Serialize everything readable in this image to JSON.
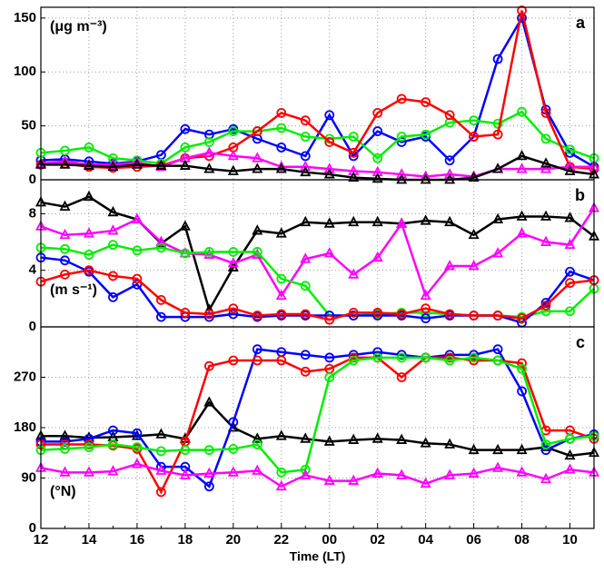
{
  "chart_data": [
    {
      "type": "line",
      "panel": "a",
      "ylabel": "(μg m⁻³)",
      "ylim": [
        0,
        160
      ],
      "yticks": [
        0,
        50,
        100,
        150
      ],
      "grid": true,
      "series": [
        {
          "color": "#0000ff",
          "marker": "circle",
          "values": [
            18,
            19,
            17,
            15,
            17,
            23,
            47,
            42,
            47,
            38,
            30,
            22,
            60,
            22,
            45,
            35,
            40,
            18,
            40,
            112,
            150,
            65,
            25,
            12
          ]
        },
        {
          "color": "#00ee00",
          "marker": "circle",
          "values": [
            25,
            27,
            30,
            20,
            18,
            15,
            30,
            35,
            45,
            45,
            48,
            40,
            38,
            40,
            20,
            40,
            42,
            53,
            55,
            52,
            63,
            38,
            28,
            20
          ]
        },
        {
          "color": "#ff0000",
          "marker": "circle",
          "values": [
            14,
            15,
            12,
            11,
            12,
            13,
            20,
            22,
            30,
            45,
            62,
            55,
            35,
            25,
            62,
            75,
            72,
            60,
            40,
            42,
            157,
            62,
            12,
            10
          ]
        },
        {
          "color": "#ff00ff",
          "marker": "triangle",
          "values": [
            15,
            17,
            14,
            14,
            16,
            12,
            20,
            25,
            22,
            20,
            12,
            12,
            10,
            8,
            7,
            5,
            3,
            5,
            3,
            10,
            10,
            10,
            12,
            12
          ]
        },
        {
          "color": "#000000",
          "marker": "triangle",
          "values": [
            14,
            14,
            13,
            12,
            14,
            13,
            13,
            10,
            8,
            10,
            10,
            7,
            5,
            2,
            1,
            0,
            0,
            0,
            2,
            10,
            22,
            15,
            8,
            5
          ]
        }
      ]
    },
    {
      "type": "line",
      "panel": "b",
      "ylabel": "(m s⁻¹)",
      "ylim": [
        0,
        10.4
      ],
      "yticks": [
        0,
        4,
        8
      ],
      "grid": true,
      "series": [
        {
          "color": "#000000",
          "marker": "triangle",
          "values": [
            8.8,
            8.5,
            9.2,
            8.1,
            7.6,
            5.9,
            7.1,
            1.2,
            4.2,
            6.8,
            6.6,
            7.4,
            7.3,
            7.4,
            7.4,
            7.3,
            7.5,
            7.4,
            6.5,
            7.6,
            7.8,
            7.8,
            7.7,
            6.4
          ]
        },
        {
          "color": "#ff00ff",
          "marker": "triangle",
          "values": [
            7.1,
            6.5,
            6.6,
            6.8,
            7.6,
            6.0,
            5.2,
            5.1,
            4.5,
            5.1,
            2.2,
            4.8,
            5.2,
            3.7,
            4.9,
            7.3,
            2.2,
            4.3,
            4.3,
            5.2,
            6.6,
            6.0,
            5.8,
            8.4
          ]
        },
        {
          "color": "#00ee00",
          "marker": "circle",
          "values": [
            5.6,
            5.5,
            5.1,
            5.8,
            5.4,
            5.6,
            5.2,
            5.3,
            5.3,
            5.3,
            3.4,
            2.9,
            0.8,
            0.8,
            0.9,
            1.0,
            1.0,
            0.9,
            0.8,
            0.8,
            0.7,
            1.1,
            1.1,
            2.7
          ]
        },
        {
          "color": "#0000ff",
          "marker": "circle",
          "values": [
            4.9,
            4.7,
            3.9,
            2.1,
            3.0,
            0.7,
            0.7,
            0.7,
            0.9,
            0.7,
            0.8,
            0.8,
            0.8,
            0.8,
            0.8,
            0.8,
            0.6,
            0.8,
            0.8,
            0.8,
            0.3,
            1.7,
            3.9,
            3.3
          ]
        },
        {
          "color": "#ff0000",
          "marker": "circle",
          "values": [
            3.2,
            3.7,
            4.0,
            3.6,
            3.4,
            1.9,
            1.0,
            0.9,
            1.3,
            0.8,
            0.9,
            0.9,
            0.5,
            1.0,
            1.0,
            0.9,
            1.3,
            0.9,
            0.8,
            0.8,
            0.6,
            1.5,
            3.1,
            3.3
          ]
        }
      ]
    },
    {
      "type": "line",
      "panel": "c",
      "ylabel": "(°N)",
      "xlabel": "Time (LT)",
      "ylim": [
        0,
        360
      ],
      "yticks": [
        0,
        90,
        180,
        270
      ],
      "grid": true,
      "categories": [
        "12",
        null,
        "14",
        null,
        "16",
        null,
        "18",
        null,
        "20",
        null,
        "22",
        null,
        "00",
        null,
        "02",
        null,
        "04",
        null,
        "06",
        null,
        "08",
        null,
        "10",
        null
      ],
      "series": [
        {
          "color": "#000000",
          "marker": "triangle",
          "values": [
            165,
            165,
            162,
            163,
            165,
            168,
            160,
            225,
            180,
            160,
            165,
            160,
            155,
            158,
            160,
            158,
            152,
            150,
            140,
            140,
            140,
            145,
            130,
            135
          ]
        },
        {
          "color": "#0000ff",
          "marker": "circle",
          "values": [
            155,
            155,
            160,
            175,
            170,
            110,
            110,
            75,
            190,
            320,
            315,
            310,
            305,
            310,
            315,
            310,
            305,
            310,
            310,
            320,
            245,
            140,
            160,
            168
          ]
        },
        {
          "color": "#ff0000",
          "marker": "circle",
          "values": [
            150,
            150,
            150,
            148,
            142,
            65,
            155,
            290,
            300,
            300,
            300,
            280,
            285,
            305,
            305,
            270,
            305,
            305,
            300,
            300,
            295,
            175,
            175,
            160
          ]
        },
        {
          "color": "#00ee00",
          "marker": "circle",
          "values": [
            140,
            142,
            145,
            150,
            145,
            138,
            140,
            140,
            142,
            150,
            100,
            105,
            270,
            300,
            305,
            305,
            305,
            300,
            305,
            300,
            285,
            150,
            160,
            165
          ]
        },
        {
          "color": "#ff00ff",
          "marker": "triangle",
          "values": [
            108,
            100,
            100,
            102,
            115,
            103,
            95,
            98,
            100,
            103,
            75,
            95,
            85,
            85,
            98,
            95,
            80,
            95,
            98,
            108,
            100,
            88,
            105,
            100
          ]
        }
      ]
    }
  ]
}
